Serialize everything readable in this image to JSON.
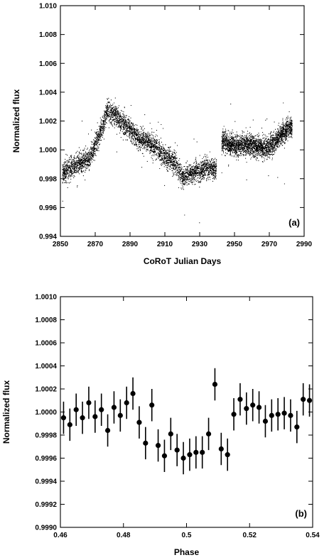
{
  "chart_data": [
    {
      "type": "scatter",
      "panel_label": "(a)",
      "xlabel": "CoRoT Julian Days",
      "ylabel": "Normalized flux",
      "xlim": [
        2850,
        2990
      ],
      "ylim": [
        0.994,
        1.01
      ],
      "xticks": [
        2850,
        2870,
        2890,
        2910,
        2930,
        2950,
        2970,
        2990
      ],
      "yticks": [
        0.994,
        0.996,
        0.998,
        1.0,
        1.002,
        1.004,
        1.006,
        1.008,
        1.01
      ],
      "xtick_labels": [
        "2850",
        "2870",
        "2890",
        "2910",
        "2930",
        "2950",
        "2970",
        "2990"
      ],
      "ytick_labels": [
        "0.994",
        "0.996",
        "0.998",
        "1.000",
        "1.002",
        "1.004",
        "1.006",
        "1.008",
        "1.010"
      ],
      "segments": [
        {
          "x_start": 2851,
          "x_end": 2939.5
        },
        {
          "x_start": 2942.5,
          "x_end": 2983
        }
      ],
      "trend": {
        "x": [
          2851,
          2856,
          2862,
          2866,
          2870,
          2874,
          2877,
          2881,
          2886,
          2891,
          2896,
          2901,
          2906,
          2911,
          2916,
          2920,
          2924,
          2929,
          2934,
          2939,
          2943,
          2947,
          2952,
          2957,
          2962,
          2967,
          2972,
          2977,
          2983
        ],
        "y": [
          0.9984,
          0.9987,
          0.9992,
          0.9993,
          1.0004,
          1.0016,
          1.0027,
          1.0025,
          1.0018,
          1.0012,
          1.0007,
          1.0005,
          1.0,
          0.9994,
          0.9991,
          0.9981,
          0.9983,
          0.9985,
          0.9987,
          0.9986,
          1.0006,
          1.0004,
          1.0003,
          1.0004,
          1.0002,
          1.0001,
          1.0004,
          1.0011,
          1.0016
        ]
      },
      "scatter_std": 0.0006,
      "n_points": 9000
    },
    {
      "type": "scatter",
      "panel_label": "(b)",
      "xlabel": "Phase",
      "ylabel": "Normalized flux",
      "xlim": [
        0.46,
        0.54
      ],
      "ylim": [
        0.999,
        1.001
      ],
      "xticks": [
        0.46,
        0.48,
        0.5,
        0.52,
        0.54
      ],
      "yticks": [
        0.999,
        0.9992,
        0.9994,
        0.9996,
        0.9998,
        1.0,
        1.0002,
        1.0004,
        1.0006,
        1.0008,
        1.001
      ],
      "xtick_labels": [
        "0.46",
        "0.48",
        "0.5",
        "0.52",
        "0.54"
      ],
      "ytick_labels": [
        "0.9990",
        "0.9992",
        "0.9994",
        "0.9996",
        "0.9998",
        "1.0000",
        "1.0002",
        "1.0004",
        "1.0006",
        "1.0008",
        "1.0010"
      ],
      "x": [
        0.461,
        0.463,
        0.465,
        0.467,
        0.469,
        0.471,
        0.473,
        0.475,
        0.477,
        0.479,
        0.481,
        0.483,
        0.485,
        0.487,
        0.489,
        0.491,
        0.493,
        0.495,
        0.497,
        0.499,
        0.501,
        0.503,
        0.505,
        0.507,
        0.509,
        0.511,
        0.513,
        0.515,
        0.517,
        0.519,
        0.521,
        0.523,
        0.525,
        0.527,
        0.529,
        0.531,
        0.533,
        0.535,
        0.537,
        0.539
      ],
      "y": [
        0.99995,
        0.99989,
        1.00002,
        0.99995,
        1.00008,
        0.99996,
        1.00002,
        0.99984,
        1.00004,
        0.99997,
        1.00008,
        1.00016,
        0.99991,
        0.99973,
        1.00006,
        0.99971,
        0.99962,
        0.99981,
        0.99967,
        0.9996,
        0.99963,
        0.99965,
        0.99965,
        0.99981,
        1.00024,
        0.99968,
        0.99963,
        0.99998,
        1.00011,
        1.00003,
        1.00006,
        1.00004,
        0.99992,
        0.99997,
        0.99998,
        0.99999,
        0.99997,
        0.99987,
        1.00011,
        1.0001
      ],
      "err": [
        0.00014,
        0.00014,
        0.00014,
        0.00014,
        0.00014,
        0.00014,
        0.00014,
        0.00014,
        0.00014,
        0.00014,
        0.00014,
        0.00014,
        0.00014,
        0.00014,
        0.00014,
        0.00014,
        0.00014,
        0.00014,
        0.00014,
        0.00014,
        0.00014,
        0.00014,
        0.00014,
        0.00014,
        0.00014,
        0.00014,
        0.00014,
        0.00014,
        0.00014,
        0.00014,
        0.00014,
        0.00014,
        0.00014,
        0.00014,
        0.00014,
        0.00014,
        0.00014,
        0.00014,
        0.00014,
        0.00014
      ]
    }
  ]
}
